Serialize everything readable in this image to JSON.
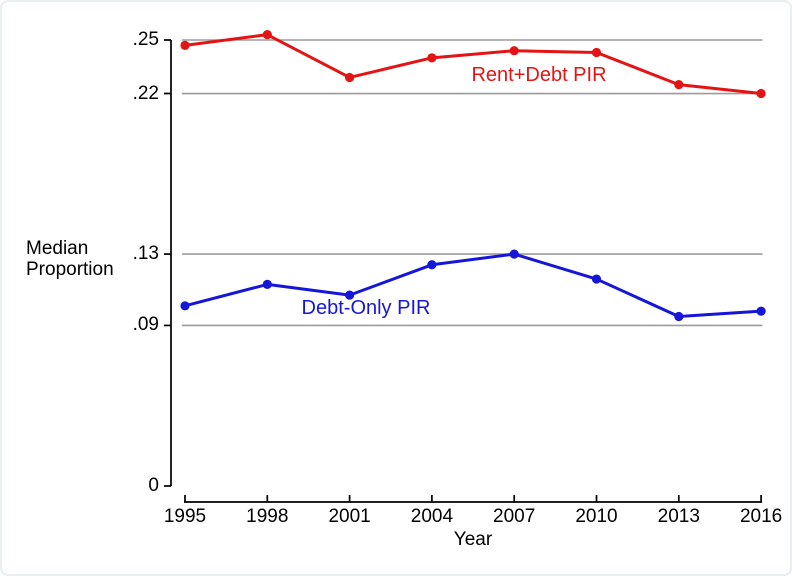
{
  "window": {
    "background": "#ffffff",
    "border_color": "#e9eef1"
  },
  "chart_data": {
    "type": "line",
    "title": "",
    "xlabel": "Year",
    "ylabel": "Median Proportion",
    "ylabel_lines": [
      "Median",
      "Proportion"
    ],
    "x": [
      1995,
      1998,
      2001,
      2004,
      2007,
      2010,
      2013,
      2016
    ],
    "series": [
      {
        "name": "Rent+Debt PIR",
        "color": "#e41414",
        "values": [
          0.247,
          0.253,
          0.229,
          0.24,
          0.244,
          0.243,
          0.225,
          0.22
        ]
      },
      {
        "name": "Debt-Only PIR",
        "color": "#1616d8",
        "values": [
          0.101,
          0.113,
          0.107,
          0.124,
          0.13,
          0.116,
          0.095,
          0.098
        ]
      }
    ],
    "yticks": [
      {
        "value": 0,
        "label": "0"
      },
      {
        "value": 0.09,
        "label": ".09"
      },
      {
        "value": 0.13,
        "label": ".13"
      },
      {
        "value": 0.22,
        "label": ".22"
      },
      {
        "value": 0.25,
        "label": ".25"
      }
    ],
    "gridline_values": [
      0.09,
      0.13,
      0.22,
      0.25
    ],
    "ylim": [
      0,
      0.262
    ],
    "grid": true,
    "legend_position": "inline-labels",
    "grid_color": "#9b9b9b",
    "axis_color": "#000000",
    "marker": "circle"
  }
}
